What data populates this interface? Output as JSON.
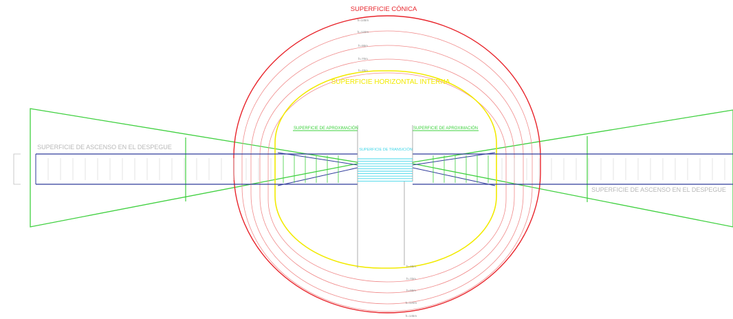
{
  "colors": {
    "conical": "#e8242b",
    "contour": "#f08a8a",
    "horizontal": "#f2ea00",
    "approach": "#39d13a",
    "takeoff": "#3fd03f",
    "runway": "#2e3a9a",
    "transition": "#3fd6e8",
    "grey_text": "#b8b8b8",
    "dim": "#9a9a9a"
  },
  "labels": {
    "conical_title": "SUPERFICIE CÓNICA",
    "horizontal_title": "SUPERFICIE HORIZONTAL INTERNA",
    "approach_left": "SUPERFICIE DE APROXIMACIÓN",
    "approach_right": "SUPERFICIE DE APROXIMACIÓN",
    "transition": "SUPERFICIE DE TRANSICIÓN",
    "takeoff_left": "SUPERFICIE DE ASCENSO EN EL DESPEGUE",
    "takeoff_right": "SUPERFICIE DE ASCENSO EN EL DESPEGUE"
  },
  "contours_top": [
    "h=145m",
    "h=120m",
    "h=95m",
    "h=70m",
    "h=45m"
  ],
  "contours_bottom": [
    "h=45m",
    "h=70m",
    "h=95m",
    "h=120m",
    "h=145m"
  ]
}
